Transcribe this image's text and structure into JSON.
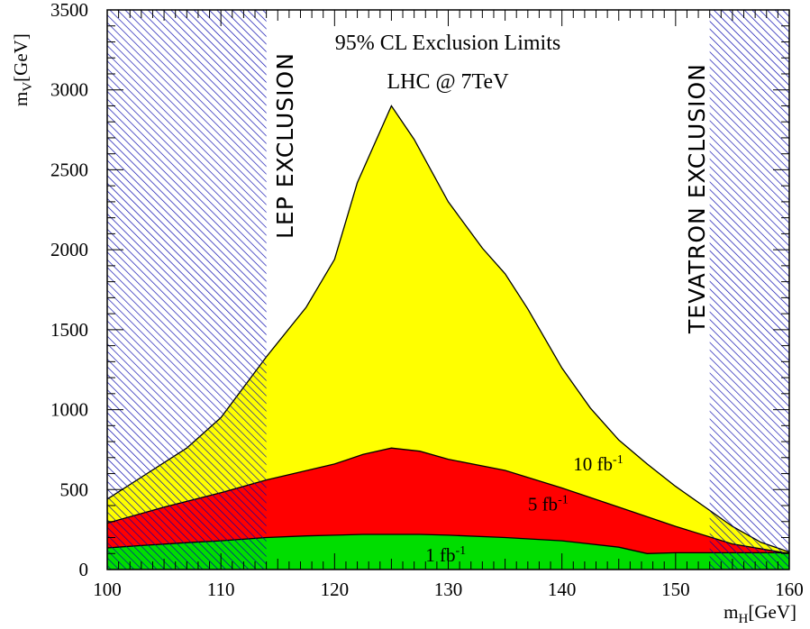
{
  "chart_data": {
    "type": "area",
    "title": "95% CL Exclusion Limits",
    "subtitle": "LHC @ 7TeV",
    "xlabel": {
      "main": "m",
      "sub": "H",
      "unit": "[GeV]"
    },
    "ylabel": {
      "main": "m",
      "sub": "V",
      "unit": "[GeV]"
    },
    "xlim": [
      100,
      160
    ],
    "ylim": [
      0,
      3500
    ],
    "x_ticks": [
      100,
      110,
      120,
      130,
      140,
      150,
      160
    ],
    "y_ticks": [
      0,
      500,
      1000,
      1500,
      2000,
      2500,
      3000,
      3500
    ],
    "grid": false,
    "series": [
      {
        "name": "10 fb-1",
        "label": {
          "main": "10 fb",
          "sup": "-1",
          "x": 141,
          "y": 620
        },
        "color": "#ffff00",
        "x": [
          100,
          103.5,
          107,
          110,
          114,
          117.5,
          120,
          122,
          125,
          127,
          130,
          133,
          135,
          137,
          140,
          142.5,
          145,
          147.5,
          150,
          153,
          155,
          157.5,
          160
        ],
        "y": [
          440,
          600,
          760,
          950,
          1330,
          1640,
          1940,
          2420,
          2900,
          2690,
          2300,
          2010,
          1850,
          1630,
          1260,
          1010,
          810,
          660,
          520,
          370,
          270,
          170,
          110
        ]
      },
      {
        "name": "5 fb-1",
        "label": {
          "main": "5 fb",
          "sup": "-1",
          "x": 137,
          "y": 370
        },
        "color": "#ff0000",
        "x": [
          100,
          105,
          110,
          114,
          117,
          120,
          122.5,
          125,
          127.5,
          130,
          135,
          140,
          145,
          150,
          155,
          160
        ],
        "y": [
          290,
          390,
          480,
          560,
          610,
          660,
          720,
          760,
          740,
          690,
          620,
          510,
          390,
          270,
          160,
          100
        ]
      },
      {
        "name": "1 fb-1",
        "label": {
          "main": "1 fb",
          "sup": "-1",
          "x": 128,
          "y": 50
        },
        "color": "#00dd00",
        "x": [
          100,
          103,
          107.5,
          110,
          114,
          117.5,
          120,
          122.5,
          125,
          127.5,
          130,
          135,
          140,
          145,
          147.5,
          150,
          153,
          155,
          157.5,
          160
        ],
        "y": [
          135,
          150,
          170,
          180,
          200,
          210,
          215,
          220,
          220,
          220,
          215,
          200,
          180,
          140,
          100,
          105,
          105,
          105,
          105,
          105
        ]
      }
    ],
    "hatched_regions": [
      {
        "name": "LEP EXCLUSION",
        "x_range": [
          100,
          114
        ],
        "color": "#0000aa"
      },
      {
        "name": "TEVATRON EXCLUSION",
        "x_range": [
          153,
          160
        ],
        "color": "#0000aa"
      }
    ]
  }
}
